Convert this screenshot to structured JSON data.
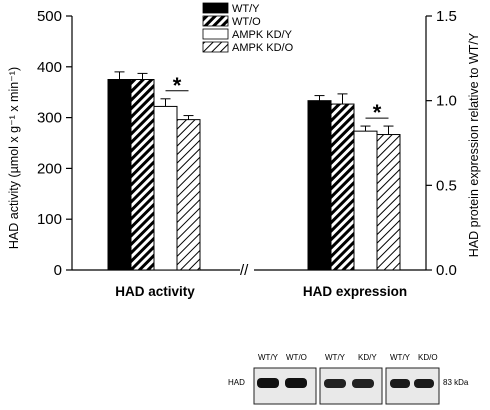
{
  "chart_data": {
    "type": "bar",
    "categories": [
      "HAD activity",
      "HAD expression"
    ],
    "series": [
      {
        "name": "WT/Y",
        "fill": "solid-black"
      },
      {
        "name": "WT/O",
        "fill": "black-hatch"
      },
      {
        "name": "AMPK KD/Y",
        "fill": "white"
      },
      {
        "name": "AMPK KD/O",
        "fill": "light-hatch"
      }
    ],
    "groups": [
      {
        "name": "HAD activity",
        "axis": "left",
        "values": [
          375,
          375,
          322,
          296
        ],
        "errors": [
          15,
          12,
          15,
          8
        ],
        "significance": {
          "label": "*",
          "between": [
            "AMPK KD/Y",
            "AMPK KD/O"
          ]
        }
      },
      {
        "name": "HAD expression",
        "axis": "right",
        "values": [
          1.0,
          0.98,
          0.82,
          0.8
        ],
        "errors": [
          0.03,
          0.06,
          0.03,
          0.05
        ],
        "significance": {
          "label": "*",
          "between": [
            "AMPK KD/Y",
            "AMPK KD/O"
          ]
        }
      }
    ],
    "y_left": {
      "label": "HAD activity (µmol x g⁻¹ x min⁻¹)",
      "range": [
        0,
        500
      ],
      "ticks": [
        "0",
        "100",
        "200",
        "300",
        "400",
        "500"
      ]
    },
    "y_right": {
      "label": "HAD protein expression relative to WT/Y",
      "range": [
        0,
        1.5
      ],
      "ticks": [
        "0.0",
        "0.5",
        "1.0",
        "1.5"
      ]
    },
    "axis_break": "//",
    "grid": false,
    "legend_position": "top-center"
  },
  "blot": {
    "row_label": "HAD",
    "lane_labels": [
      "WT/Y",
      "WT/O",
      "KD/Y",
      "WT/Y",
      "KD/O"
    ],
    "size_marker": "83 kDa"
  }
}
